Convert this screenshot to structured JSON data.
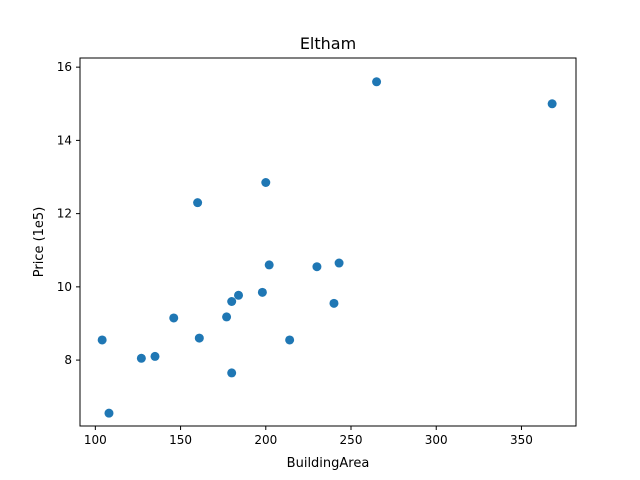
{
  "chart_data": {
    "type": "scatter",
    "title": "Eltham",
    "xlabel": "BuildingArea",
    "ylabel": "Price (1e5)",
    "xlim": [
      91,
      382
    ],
    "ylim": [
      6.2,
      16.25
    ],
    "xticks": [
      100,
      150,
      200,
      250,
      300,
      350
    ],
    "yticks": [
      8,
      10,
      12,
      14,
      16
    ],
    "grid": false,
    "marker_color": "#1f77b4",
    "points": [
      {
        "x": 104,
        "y": 8.55
      },
      {
        "x": 108,
        "y": 6.55
      },
      {
        "x": 127,
        "y": 8.05
      },
      {
        "x": 135,
        "y": 8.1
      },
      {
        "x": 146,
        "y": 9.15
      },
      {
        "x": 160,
        "y": 12.3
      },
      {
        "x": 161,
        "y": 8.6
      },
      {
        "x": 177,
        "y": 9.18
      },
      {
        "x": 180,
        "y": 9.6
      },
      {
        "x": 180,
        "y": 7.65
      },
      {
        "x": 184,
        "y": 9.77
      },
      {
        "x": 198,
        "y": 9.85
      },
      {
        "x": 200,
        "y": 12.85
      },
      {
        "x": 202,
        "y": 10.6
      },
      {
        "x": 214,
        "y": 8.55
      },
      {
        "x": 230,
        "y": 10.55
      },
      {
        "x": 240,
        "y": 9.55
      },
      {
        "x": 243,
        "y": 10.65
      },
      {
        "x": 265,
        "y": 15.6
      },
      {
        "x": 368,
        "y": 15.0
      }
    ]
  }
}
